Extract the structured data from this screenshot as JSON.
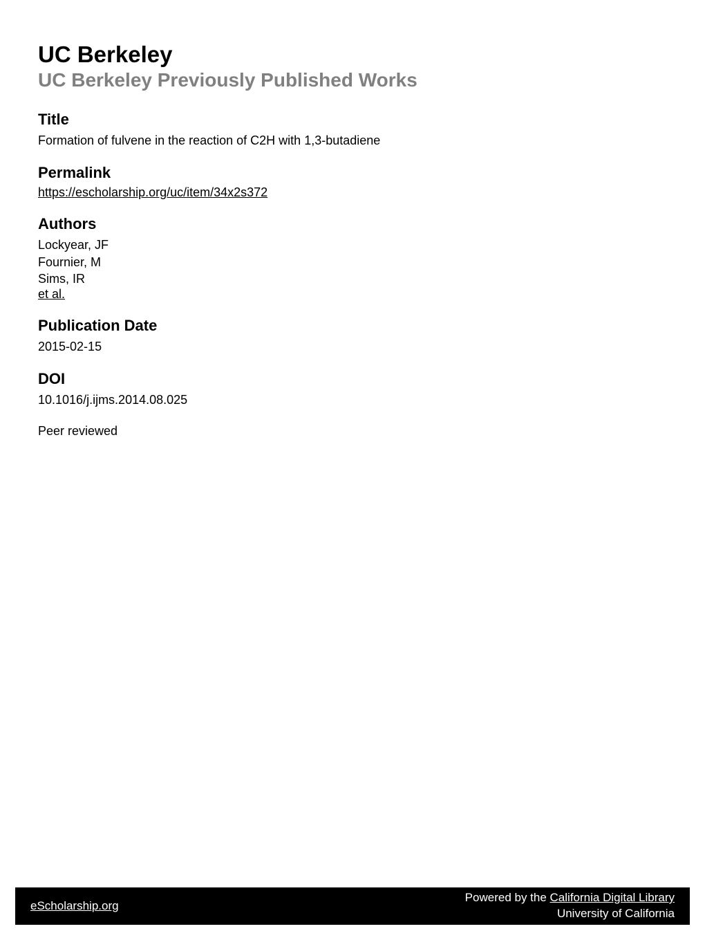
{
  "header": {
    "institution": "UC Berkeley",
    "subtitle": "UC Berkeley Previously Published Works"
  },
  "sections": {
    "title": {
      "heading": "Title",
      "text": "Formation of fulvene in the reaction of C2H with 1,3-butadiene"
    },
    "permalink": {
      "heading": "Permalink",
      "url": "https://escholarship.org/uc/item/34x2s372"
    },
    "authors": {
      "heading": "Authors",
      "list": [
        "Lockyear, JF",
        "Fournier, M",
        "Sims, IR"
      ],
      "et_al": "et al."
    },
    "publication_date": {
      "heading": "Publication Date",
      "text": "2015-02-15"
    },
    "doi": {
      "heading": "DOI",
      "text": "10.1016/j.ijms.2014.08.025"
    },
    "peer_reviewed": "Peer reviewed"
  },
  "footer": {
    "left": "eScholarship.org",
    "right_prefix": "Powered by the ",
    "right_link": "California Digital Library",
    "right_sub": "University of California"
  },
  "colors": {
    "background": "#ffffff",
    "text": "#000000",
    "subtitle_gray": "#808080",
    "footer_bg": "#000000",
    "footer_text": "#ffffff"
  },
  "typography": {
    "institution_fontsize": 33,
    "subtitle_fontsize": 28,
    "heading_fontsize": 22,
    "body_fontsize": 18,
    "footer_fontsize": 17
  }
}
